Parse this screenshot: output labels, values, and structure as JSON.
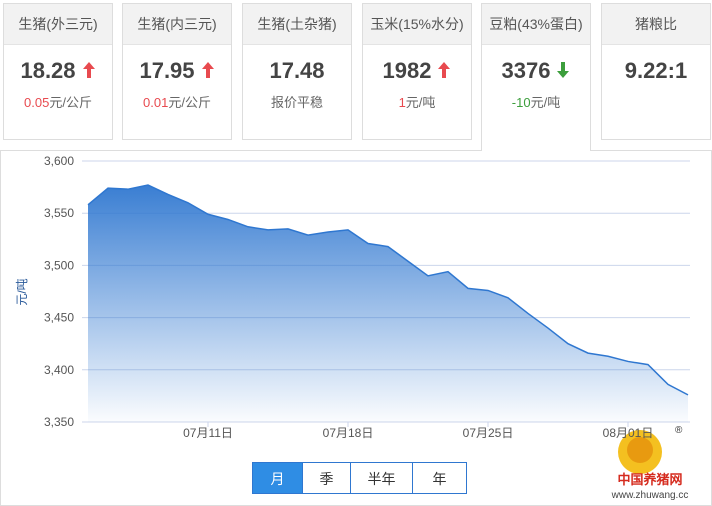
{
  "cards": [
    {
      "title": "生猪(外三元)",
      "value": "18.28",
      "trend": "up",
      "change": "0.05",
      "unit": "元/公斤"
    },
    {
      "title": "生猪(内三元)",
      "value": "17.95",
      "trend": "up",
      "change": "0.01",
      "unit": "元/公斤"
    },
    {
      "title": "生猪(土杂猪)",
      "value": "17.48",
      "note": "报价平稳"
    },
    {
      "title": "玉米(15%水分)",
      "value": "1982",
      "trend": "up",
      "change": "1",
      "unit": "元/吨"
    },
    {
      "title": "豆粕(43%蛋白)",
      "value": "3376",
      "trend": "down",
      "change": "-10",
      "unit": "元/吨",
      "active": true
    },
    {
      "title": "猪粮比",
      "value": "9.22:1"
    }
  ],
  "chart_data": {
    "type": "area",
    "y_label": "元/吨",
    "color": "#2f77d0",
    "categories": [
      null,
      null,
      null,
      null,
      null,
      null,
      "07月11日",
      null,
      null,
      null,
      null,
      null,
      null,
      "07月18日",
      null,
      null,
      null,
      null,
      null,
      null,
      "07月25日",
      null,
      null,
      null,
      null,
      null,
      null,
      "08月01日",
      null,
      null,
      null
    ],
    "values": [
      3558,
      3574,
      3573,
      3577,
      3568,
      3560,
      3549,
      3544,
      3537,
      3534,
      3535,
      3529,
      3532,
      3534,
      3521,
      3518,
      3504,
      3490,
      3494,
      3478,
      3476,
      3469,
      3454,
      3440,
      3425,
      3416,
      3413,
      3408,
      3405,
      3386,
      3376
    ],
    "ylim": [
      3350,
      3600
    ],
    "yticks": [
      {
        "value": 3350,
        "label": "3,350"
      },
      {
        "value": 3400,
        "label": "3,400"
      },
      {
        "value": 3450,
        "label": "3,450"
      },
      {
        "value": 3500,
        "label": "3,500"
      },
      {
        "value": 3550,
        "label": "3,550"
      },
      {
        "value": 3600,
        "label": "3,600"
      }
    ],
    "grid": true
  },
  "buttons": [
    {
      "label": "月",
      "active": true
    },
    {
      "label": "季"
    },
    {
      "label": "半年"
    },
    {
      "label": "年"
    }
  ],
  "watermark": {
    "name": "中国养猪网",
    "url": "www.zhuwang.cc",
    "mark": "®"
  }
}
